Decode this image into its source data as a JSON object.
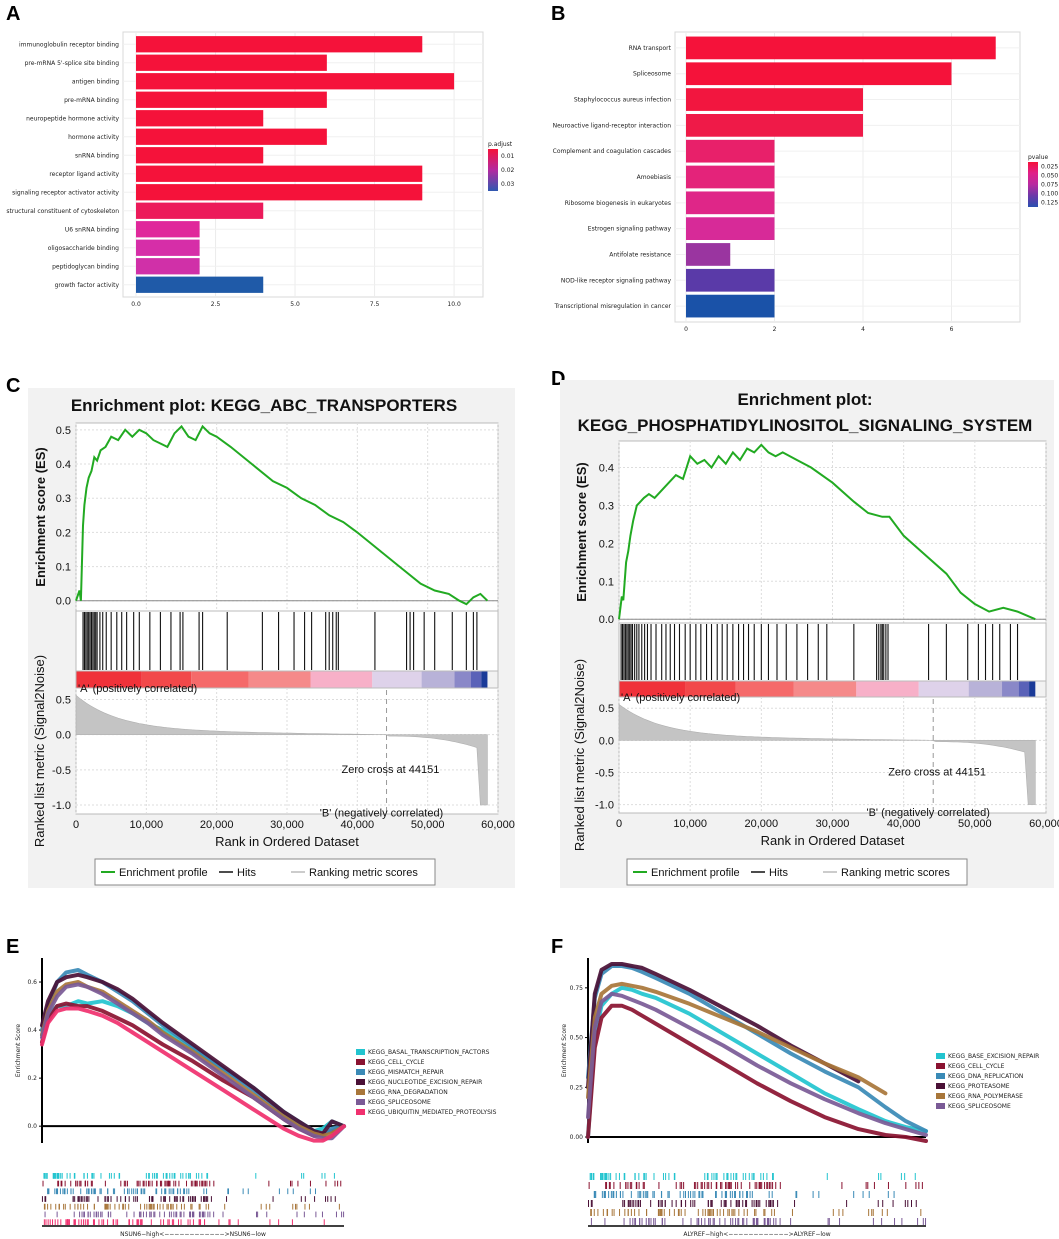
{
  "panel_letters": {
    "a": "A",
    "b": "B",
    "c": "C",
    "d": "D",
    "e": "E",
    "f": "F"
  },
  "chart_data": [
    {
      "id": "A",
      "type": "bar",
      "orientation": "horizontal",
      "categories": [
        "immunoglobulin receptor binding",
        "pre-mRNA 5'-splice site binding",
        "antigen binding",
        "pre-mRNA binding",
        "neuropeptide hormone activity",
        "hormone activity",
        "snRNA binding",
        "receptor ligand activity",
        "signaling receptor activator activity",
        "structural constituent of cytoskeleton",
        "U6 snRNA binding",
        "oligosaccharide binding",
        "peptidoglycan binding",
        "growth factor activity"
      ],
      "values": [
        9,
        6,
        10,
        6,
        4,
        6,
        4,
        9,
        9,
        4,
        2,
        2,
        2,
        4
      ],
      "colors": [
        "#f5123a",
        "#f5123a",
        "#f5123a",
        "#f5123a",
        "#f5123a",
        "#f5123a",
        "#f5123a",
        "#f5123a",
        "#f5123a",
        "#ec1a5a",
        "#e0289b",
        "#d62ea8",
        "#d030a8",
        "#1f5aa8"
      ],
      "xticks": [
        "0.0",
        "2.5",
        "5.0",
        "7.5",
        "10.0"
      ],
      "xtick_values": [
        0,
        2.5,
        5,
        7.5,
        10
      ],
      "xlim": [
        0,
        10.5
      ],
      "legend": {
        "title": "p.adjust",
        "labels": [
          "0.01",
          "0.02",
          "0.03"
        ],
        "colors": [
          "#f5123a",
          "#b32aa0",
          "#2f58b0"
        ]
      }
    },
    {
      "id": "B",
      "type": "bar",
      "orientation": "horizontal",
      "categories": [
        "RNA transport",
        "Spliceosome",
        "Staphylococcus aureus infection",
        "Neuroactive ligand-receptor interaction",
        "Complement and coagulation cascades",
        "Amoebiasis",
        "Ribosome biogenesis in eukaryotes",
        "Estrogen signaling pathway",
        "Antifolate resistance",
        "NOD-like receptor signaling pathway",
        "Transcriptional misregulation in cancer"
      ],
      "values": [
        7,
        6,
        4,
        4,
        2,
        2,
        2,
        2,
        1,
        2,
        2
      ],
      "colors": [
        "#f5123a",
        "#f5123a",
        "#f2163f",
        "#ef1a48",
        "#e8206a",
        "#e4237a",
        "#df2688",
        "#d72a98",
        "#9a35a0",
        "#5a3aa8",
        "#1a52a8"
      ],
      "xticks": [
        "0",
        "2",
        "4",
        "6"
      ],
      "xtick_values": [
        0,
        2,
        4,
        6
      ],
      "xlim": [
        0,
        7.3
      ],
      "legend": {
        "title": "pvalue",
        "labels": [
          "0.025",
          "0.050",
          "0.075",
          "0.100",
          "0.125"
        ],
        "colors": [
          "#f5123a",
          "#e0208a",
          "#b82aa0",
          "#6a38a8",
          "#2a50b0"
        ]
      }
    },
    {
      "id": "C",
      "type": "line",
      "title": "Enrichment plot: KEGG_ABC_TRANSPORTERS",
      "ylabel_es": "Enrichment score (ES)",
      "ylabel_metric": "Ranked list metric (Signal2Noise)",
      "xlabel": "Rank in Ordered Dataset",
      "es_yticks": [
        "0.5",
        "0.4",
        "0.3",
        "0.2",
        "0.1",
        "0.0"
      ],
      "es_ylim": [
        -0.03,
        0.52
      ],
      "metric_yticks": [
        "0.5",
        "0.0",
        "-0.5",
        "-1.0"
      ],
      "xticks": [
        "0",
        "10,000",
        "20,000",
        "30,000",
        "40,000",
        "50,000",
        "60,000"
      ],
      "xlim": [
        0,
        60000
      ],
      "es_x": [
        0,
        500,
        700,
        1000,
        1200,
        1500,
        1800,
        2200,
        2600,
        3000,
        3500,
        4200,
        5000,
        6000,
        7000,
        8000,
        9000,
        10000,
        11000,
        12000,
        13000,
        14000,
        15000,
        16000,
        17000,
        18000,
        19000,
        20000,
        22000,
        25000,
        28000,
        30000,
        32000,
        34000,
        36000,
        38000,
        40000,
        43000,
        46000,
        49000,
        51000,
        53000,
        54500,
        55500,
        56500,
        57500,
        58500
      ],
      "es_y": [
        0,
        0.03,
        0.0,
        0.22,
        0.28,
        0.33,
        0.36,
        0.38,
        0.42,
        0.41,
        0.44,
        0.45,
        0.48,
        0.47,
        0.5,
        0.48,
        0.5,
        0.49,
        0.47,
        0.46,
        0.45,
        0.49,
        0.51,
        0.48,
        0.47,
        0.51,
        0.49,
        0.48,
        0.45,
        0.4,
        0.35,
        0.33,
        0.3,
        0.28,
        0.25,
        0.23,
        0.2,
        0.15,
        0.1,
        0.05,
        0.03,
        0.02,
        0.0,
        -0.01,
        0.01,
        0.02,
        0.0
      ],
      "hits_x": [
        1000,
        1200,
        1400,
        1600,
        1800,
        2000,
        2200,
        2400,
        2600,
        2800,
        3000,
        3400,
        3800,
        4300,
        5000,
        5800,
        6500,
        7200,
        8200,
        9000,
        10500,
        12000,
        13500,
        14800,
        15200,
        17500,
        18000,
        21500,
        26500,
        28800,
        31000,
        32500,
        33500,
        35500,
        36000,
        36500,
        37000,
        37300,
        42500,
        47000,
        47500,
        48000,
        49500,
        51000,
        53500,
        55500,
        56500,
        57000
      ],
      "ranked_colors": [
        "#f0323a",
        "#f2484a",
        "#f56a6a",
        "#f58a8a",
        "#f7b0c8",
        "#ded2ea",
        "#b8b2d8",
        "#8a88c8",
        "#5a62b8",
        "#1a3a98"
      ],
      "zero_cross_text": "Zero cross at 44151",
      "zero_cross": 44151,
      "positive_label": "'A' (positively correlated)",
      "negative_label": "'B' (negatively correlated)",
      "legend": [
        "Enrichment profile",
        "Hits",
        "Ranking metric scores"
      ]
    },
    {
      "id": "D",
      "type": "line",
      "title": "Enrichment plot:",
      "title_line2": "KEGG_PHOSPHATIDYLINOSITOL_SIGNALING_SYSTEM",
      "ylabel_es": "Enrichment score (ES)",
      "ylabel_metric": "Ranked list metric (Signal2Noise)",
      "xlabel": "Rank in Ordered Dataset",
      "es_yticks": [
        "0.4",
        "0.3",
        "0.2",
        "0.1",
        "0.0"
      ],
      "es_ylim": [
        -0.01,
        0.47
      ],
      "metric_yticks": [
        "0.5",
        "0.0",
        "-0.5",
        "-1.0"
      ],
      "xticks": [
        "0",
        "10,000",
        "20,000",
        "30,000",
        "40,000",
        "50,000",
        "60,000"
      ],
      "xlim": [
        0,
        60000
      ],
      "es_x": [
        0,
        400,
        600,
        800,
        1000,
        1300,
        1600,
        2000,
        2500,
        3000,
        3500,
        4200,
        5000,
        6000,
        7000,
        8000,
        9000,
        10000,
        11000,
        12000,
        13000,
        14000,
        15000,
        16000,
        17000,
        18000,
        19000,
        20000,
        21000,
        22000,
        23000,
        25000,
        27000,
        30000,
        33000,
        35000,
        37000,
        38000,
        40000,
        43000,
        46000,
        48000,
        50000,
        52000,
        54000,
        56000,
        58500
      ],
      "es_y": [
        0,
        0.06,
        0.05,
        0.1,
        0.15,
        0.18,
        0.22,
        0.26,
        0.3,
        0.31,
        0.32,
        0.33,
        0.32,
        0.34,
        0.36,
        0.38,
        0.37,
        0.43,
        0.41,
        0.42,
        0.4,
        0.43,
        0.41,
        0.44,
        0.42,
        0.45,
        0.44,
        0.46,
        0.44,
        0.43,
        0.44,
        0.42,
        0.4,
        0.36,
        0.31,
        0.28,
        0.27,
        0.27,
        0.22,
        0.17,
        0.12,
        0.07,
        0.04,
        0.02,
        0.03,
        0.02,
        0.0
      ],
      "hits_x": [
        300,
        500,
        700,
        900,
        1100,
        1300,
        1500,
        1700,
        1900,
        2200,
        2500,
        2800,
        3200,
        3600,
        4000,
        4500,
        5200,
        6000,
        6600,
        7200,
        7800,
        8500,
        9300,
        10000,
        10800,
        11500,
        12300,
        13000,
        13800,
        14500,
        15200,
        16000,
        16800,
        17500,
        18200,
        19000,
        20000,
        21000,
        22200,
        23500,
        25000,
        26500,
        28000,
        29200,
        33000,
        36200,
        36500,
        36800,
        37000,
        37200,
        37500,
        37800,
        43500,
        46000,
        49000,
        50500,
        51500,
        52500,
        53500,
        55000,
        56000
      ],
      "ranked_colors": [
        "#f0323a",
        "#f2484a",
        "#f56a6a",
        "#f58a8a",
        "#f7b0c8",
        "#ded2ea",
        "#b8b2d8",
        "#8a88c8",
        "#5a62b8",
        "#1a3a98"
      ],
      "zero_cross_text": "Zero cross at 44151",
      "zero_cross": 44151,
      "positive_label": "'A' (positively correlated)",
      "negative_label": "'B' (negatively correlated)",
      "legend": [
        "Enrichment profile",
        "Hits",
        "Ranking metric scores"
      ]
    },
    {
      "id": "E",
      "type": "line",
      "ylabel": "Enrichment Score",
      "yticks": [
        "0.0",
        "0.2",
        "0.4",
        "0.6"
      ],
      "ytick_values": [
        0,
        0.2,
        0.4,
        0.6
      ],
      "ylim": [
        -0.07,
        0.7
      ],
      "xlabel": "NSUN6−high<−−−−−−−−−−−−>NSUN6−low",
      "x": [
        0,
        0.02,
        0.05,
        0.08,
        0.12,
        0.15,
        0.2,
        0.25,
        0.3,
        0.35,
        0.4,
        0.5,
        0.6,
        0.7,
        0.8,
        0.85,
        0.9,
        0.93,
        0.96,
        1.0
      ],
      "series": [
        {
          "name": "KEGG_BASAL_TRANSCRIPTION_FACTORS",
          "color": "#22c4cf",
          "values": [
            0.38,
            0.46,
            0.5,
            0.5,
            0.52,
            0.51,
            0.52,
            0.5,
            0.47,
            0.43,
            0.4,
            0.32,
            0.24,
            0.16,
            0.06,
            0.02,
            -0.02,
            -0.01,
            0.02,
            0.0
          ]
        },
        {
          "name": "KEGG_CELL_CYCLE",
          "color": "#8a1230",
          "values": [
            0.35,
            0.44,
            0.5,
            0.51,
            0.5,
            0.5,
            0.48,
            0.45,
            0.42,
            0.38,
            0.34,
            0.27,
            0.19,
            0.12,
            0.03,
            -0.01,
            -0.04,
            -0.03,
            -0.02,
            0.0
          ]
        },
        {
          "name": "KEGG_MISMATCH_REPAIR",
          "color": "#3a8ab6",
          "values": [
            0.4,
            0.5,
            0.6,
            0.64,
            0.65,
            0.63,
            0.6,
            0.56,
            0.52,
            0.47,
            0.42,
            0.33,
            0.24,
            0.15,
            0.05,
            0.0,
            -0.03,
            -0.04,
            -0.01,
            0.0
          ]
        },
        {
          "name": "KEGG_NUCLEOTIDE_EXCISION_REPAIR",
          "color": "#4a1036",
          "values": [
            0.42,
            0.52,
            0.6,
            0.62,
            0.63,
            0.62,
            0.6,
            0.57,
            0.53,
            0.48,
            0.43,
            0.34,
            0.25,
            0.16,
            0.06,
            0.02,
            -0.02,
            -0.03,
            0.02,
            0.0
          ]
        },
        {
          "name": "KEGG_RNA_DEGRADATION",
          "color": "#a8763a",
          "values": [
            0.38,
            0.48,
            0.56,
            0.59,
            0.6,
            0.58,
            0.56,
            0.52,
            0.48,
            0.44,
            0.39,
            0.31,
            0.22,
            0.13,
            0.04,
            0.0,
            -0.03,
            -0.04,
            -0.03,
            0.0
          ]
        },
        {
          "name": "KEGG_SPLICEOSOME",
          "color": "#7a5a96",
          "values": [
            0.37,
            0.47,
            0.54,
            0.58,
            0.59,
            0.58,
            0.55,
            0.51,
            0.47,
            0.43,
            0.38,
            0.3,
            0.21,
            0.12,
            0.03,
            -0.01,
            -0.04,
            -0.05,
            -0.05,
            0.0
          ]
        },
        {
          "name": "KEGG_UBIQUITIN_MEDIATED_PROTEOLYSIS",
          "color": "#f0306e",
          "values": [
            0.34,
            0.43,
            0.48,
            0.49,
            0.49,
            0.48,
            0.46,
            0.43,
            0.39,
            0.35,
            0.31,
            0.23,
            0.15,
            0.07,
            -0.01,
            -0.04,
            -0.06,
            -0.06,
            -0.04,
            0.0
          ]
        }
      ]
    },
    {
      "id": "F",
      "type": "line",
      "ylabel": "Enrichment Score",
      "yticks": [
        "0.00",
        "0.25",
        "0.50",
        "0.75"
      ],
      "ytick_values": [
        0,
        0.25,
        0.5,
        0.75
      ],
      "ylim": [
        -0.03,
        0.9
      ],
      "xlabel": "ALYREF−high<−−−−−−−−−−−−>ALYREF−low",
      "x": [
        0,
        0.02,
        0.04,
        0.07,
        0.1,
        0.13,
        0.16,
        0.2,
        0.3,
        0.4,
        0.5,
        0.6,
        0.7,
        0.8,
        0.88,
        0.94,
        1.0
      ],
      "series": [
        {
          "name": "KEGG_BASE_EXCISION_REPAIR",
          "color": "#22c4cf",
          "values": [
            0.0,
            0.5,
            0.66,
            0.72,
            0.75,
            0.74,
            0.72,
            0.7,
            0.62,
            0.52,
            0.42,
            0.32,
            0.22,
            0.14,
            0.08,
            0.05,
            0.03
          ]
        },
        {
          "name": "KEGG_CELL_CYCLE",
          "color": "#8a1230",
          "values": [
            0.0,
            0.45,
            0.6,
            0.66,
            0.66,
            0.64,
            0.61,
            0.57,
            0.47,
            0.37,
            0.27,
            0.18,
            0.1,
            0.04,
            0.01,
            0.0,
            -0.02
          ]
        },
        {
          "name": "KEGG_DNA_REPLICATION",
          "color": "#3a8ab6",
          "values": [
            0.3,
            0.7,
            0.82,
            0.86,
            0.86,
            0.85,
            0.83,
            0.8,
            0.72,
            0.62,
            0.52,
            0.42,
            0.33,
            0.25,
            0.15,
            0.08,
            0.03
          ]
        },
        {
          "name": "KEGG_PROTEASOME",
          "color": "#4a1036",
          "values": [
            0.25,
            0.72,
            0.84,
            0.87,
            0.87,
            0.86,
            0.85,
            0.82,
            0.74,
            0.65,
            0.56,
            0.46,
            0.37,
            0.28,
            null,
            null,
            null
          ]
        },
        {
          "name": "KEGG_RNA_POLYMERASE",
          "color": "#a8763a",
          "values": [
            0.2,
            0.6,
            0.72,
            0.76,
            0.77,
            0.76,
            0.75,
            0.73,
            0.67,
            0.6,
            0.53,
            0.45,
            0.37,
            0.3,
            0.22,
            null,
            null
          ]
        },
        {
          "name": "KEGG_SPLICEOSOME",
          "color": "#7a5a96",
          "values": [
            0.1,
            0.55,
            0.68,
            0.72,
            0.71,
            0.69,
            0.67,
            0.64,
            0.55,
            0.46,
            0.36,
            0.27,
            0.19,
            0.12,
            0.07,
            0.04,
            0.01
          ]
        }
      ]
    }
  ]
}
